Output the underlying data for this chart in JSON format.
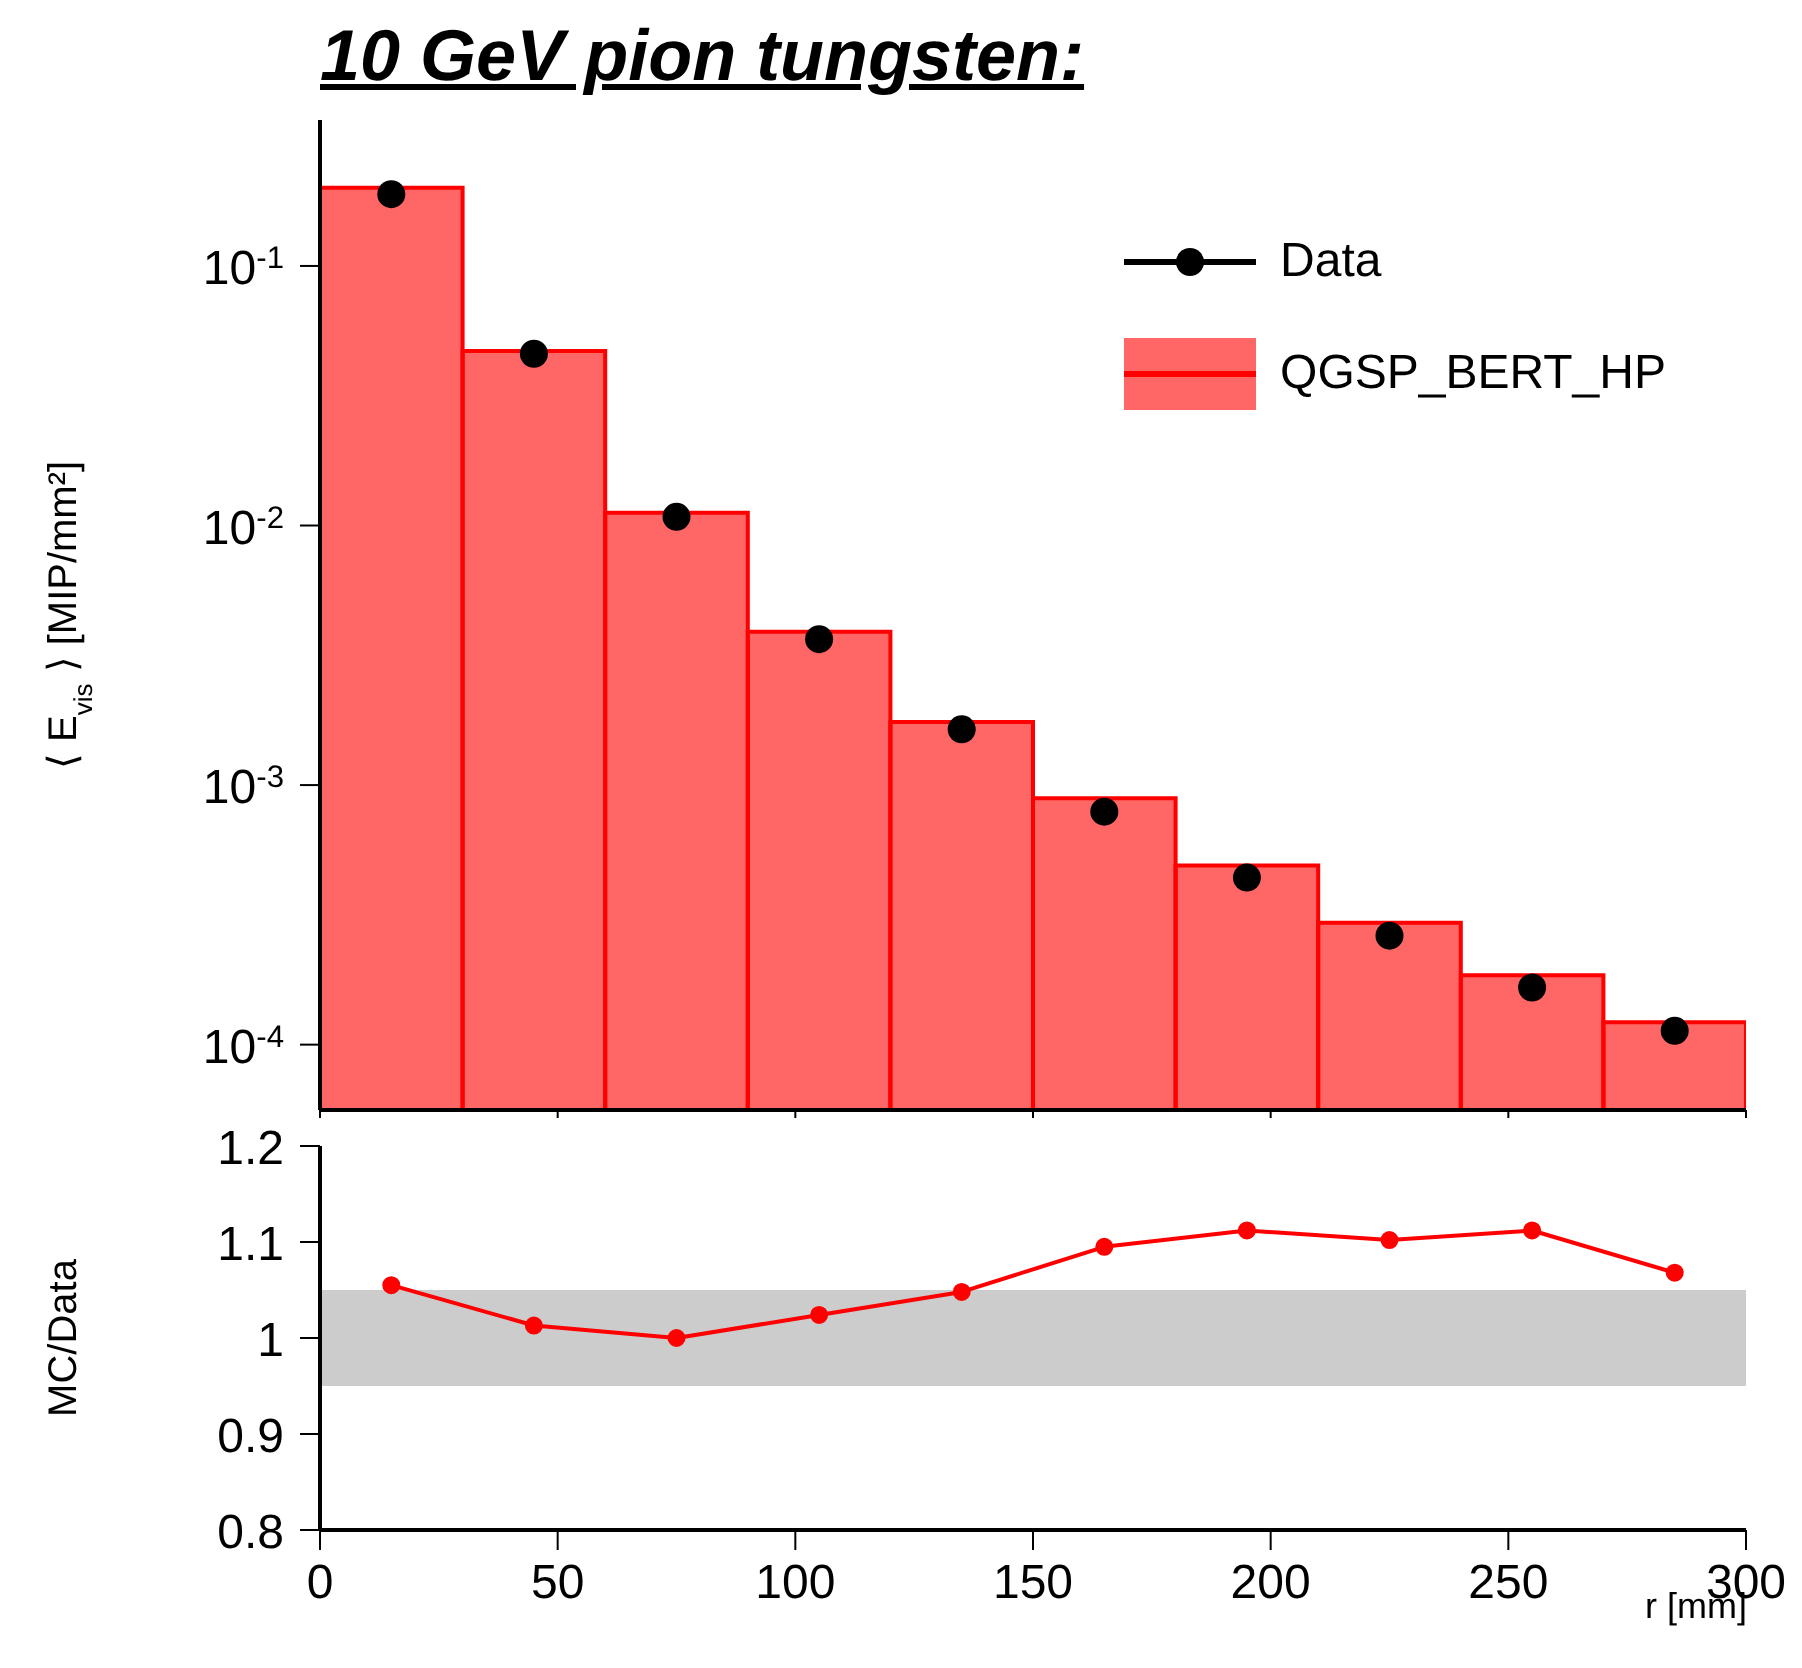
{
  "chart_data": [
    {
      "type": "histogram",
      "title": "10 GeV pion tungsten:",
      "ylabel": "⟨ E$_{vis}$ ⟩ [MIP/mm²]",
      "bins": [
        0,
        30,
        60,
        90,
        120,
        150,
        180,
        210,
        240,
        270,
        300
      ],
      "series": [
        {
          "name": "QGSP_BERT_HP",
          "color": "#ff0000",
          "values": [
            0.2,
            0.047,
            0.0112,
            0.0039,
            0.00175,
            0.00089,
            0.00049,
            0.000295,
            0.000185,
            0.000122
          ]
        },
        {
          "name": "Data",
          "type": "scatter",
          "color": "#000000",
          "x": [
            15,
            45,
            75,
            105,
            135,
            165,
            195,
            225,
            255,
            285
          ],
          "values": [
            0.189,
            0.0459,
            0.0108,
            0.00365,
            0.00164,
            0.00079,
            0.00044,
            0.000263,
            0.000166,
            0.000113
          ]
        }
      ],
      "xlim": [
        0,
        300
      ],
      "xticks": [
        0,
        50,
        100,
        150,
        200,
        250,
        300
      ],
      "ylim": [
        5.6e-05,
        0.365
      ],
      "yticks": [
        {
          "value": 0.1,
          "label": "10$^{-1}$"
        },
        {
          "value": 0.01,
          "label": "10$^{-2}$"
        },
        {
          "value": 0.001,
          "label": "10$^{-3}$"
        },
        {
          "value": 0.0001,
          "label": "10$^{-4}$"
        }
      ],
      "log": true,
      "legend": "top right",
      "tick_labels": "y"
    },
    {
      "type": "line",
      "xlabel": "r [mm]",
      "ylabel": "MC/Data",
      "x": [
        15,
        45,
        75,
        105,
        135,
        165,
        195,
        225,
        255,
        285
      ],
      "series": [
        {
          "color": "#ff0000",
          "values": [
            1.055,
            1.013,
            1.0,
            1.024,
            1.048,
            1.095,
            1.112,
            1.102,
            1.112,
            1.068
          ]
        }
      ],
      "marker": "circle",
      "xlim": [
        0,
        300
      ],
      "xticks": [
        0,
        50,
        100,
        150,
        200,
        250,
        300
      ],
      "ylim": [
        0.8,
        1.2
      ],
      "yticks": [
        0.8,
        0.9,
        1,
        1.1,
        1.2
      ],
      "bands": [
        {
          "axis": "y",
          "from": 0.95,
          "to": 1.05,
          "color": "#cccccc"
        }
      ]
    }
  ]
}
